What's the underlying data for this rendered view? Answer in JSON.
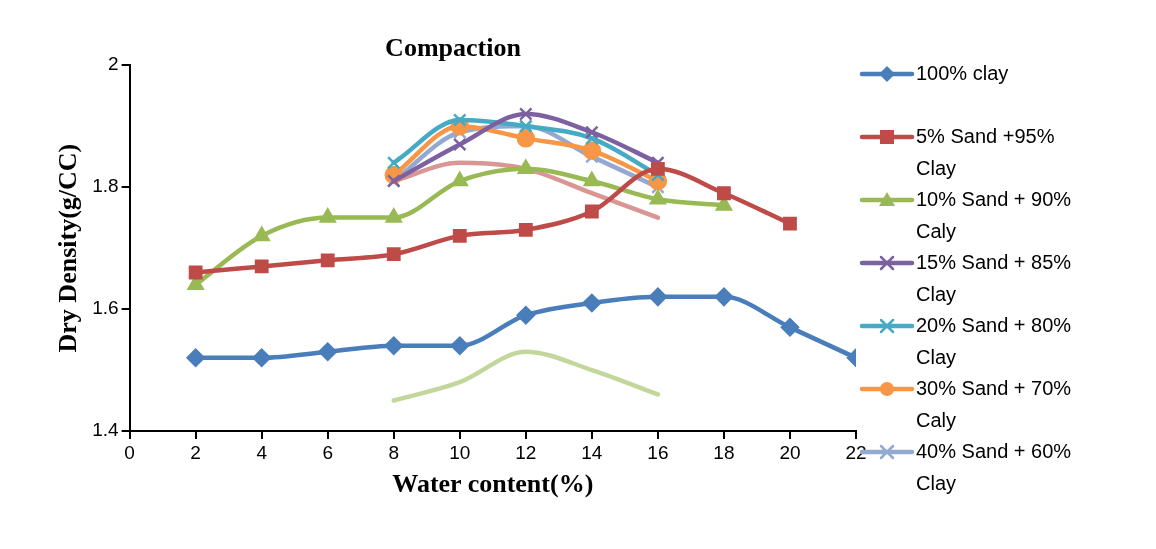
{
  "chart_data": {
    "type": "line",
    "title": "Compaction",
    "xlabel": "Water content(%)",
    "ylabel": "Dry Density(g/CC)",
    "xlim": [
      0,
      22
    ],
    "xticks": [
      0,
      2,
      4,
      6,
      8,
      10,
      12,
      14,
      16,
      18,
      20,
      22
    ],
    "ylim": [
      1.4,
      2
    ],
    "yticks": [
      {
        "value": 1.4,
        "label": "1.4"
      },
      {
        "value": 1.6,
        "label": "1.6"
      },
      {
        "value": 1.8,
        "label": "1.8"
      },
      {
        "value": 2,
        "label": "2"
      }
    ],
    "grid": false,
    "legend": "right",
    "series": [
      {
        "name": "100% clay",
        "color": "#4a7ebb",
        "marker": "diamond",
        "x": [
          2,
          4,
          6,
          8,
          10,
          12,
          14,
          16,
          18,
          20,
          22
        ],
        "values": [
          1.52,
          1.52,
          1.53,
          1.54,
          1.54,
          1.59,
          1.61,
          1.62,
          1.62,
          1.57,
          1.52
        ]
      },
      {
        "name": "5% Sand +95% Clay",
        "color": "#be4b48",
        "marker": "square",
        "x": [
          2,
          4,
          6,
          8,
          10,
          12,
          14,
          16,
          18,
          20
        ],
        "values": [
          1.66,
          1.67,
          1.68,
          1.69,
          1.72,
          1.73,
          1.76,
          1.83,
          1.79,
          1.74
        ]
      },
      {
        "name": "10% Sand + 90% Caly",
        "color": "#98b954",
        "marker": "triangle",
        "x": [
          2,
          4,
          6,
          8,
          10,
          12,
          14,
          16,
          18
        ],
        "values": [
          1.64,
          1.72,
          1.75,
          1.75,
          1.81,
          1.83,
          1.81,
          1.78,
          1.77
        ]
      },
      {
        "name": "15% Sand + 85% Clay",
        "color": "#7d60a0",
        "marker": "cross",
        "x": [
          8,
          10,
          12,
          14,
          16
        ],
        "values": [
          1.81,
          1.87,
          1.92,
          1.89,
          1.84
        ]
      },
      {
        "name": "20% Sand + 80% Clay",
        "color": "#46aac5",
        "marker": "cross",
        "x": [
          8,
          10,
          12,
          14,
          16
        ],
        "values": [
          1.84,
          1.91,
          1.9,
          1.88,
          1.82
        ]
      },
      {
        "name": "30% Sand + 70% Caly",
        "color": "#f79646",
        "marker": "circle",
        "x": [
          8,
          10,
          12,
          14,
          16
        ],
        "values": [
          1.82,
          1.9,
          1.88,
          1.86,
          1.81
        ]
      },
      {
        "name": "40% Sand + 60% Clay",
        "color": "#93a9cf",
        "marker": "cross",
        "x": [
          8,
          10,
          12,
          14,
          16
        ],
        "values": [
          1.81,
          1.89,
          1.9,
          1.85,
          1.8
        ]
      },
      {
        "color": "#d99694",
        "marker": "none",
        "x": [
          8,
          10,
          12,
          14,
          16
        ],
        "values": [
          1.81,
          1.84,
          1.83,
          1.79,
          1.75
        ]
      },
      {
        "color": "#c3d69b",
        "marker": "none",
        "x": [
          8,
          10,
          12,
          14,
          16
        ],
        "values": [
          1.45,
          1.48,
          1.53,
          1.5,
          1.46
        ]
      }
    ]
  }
}
